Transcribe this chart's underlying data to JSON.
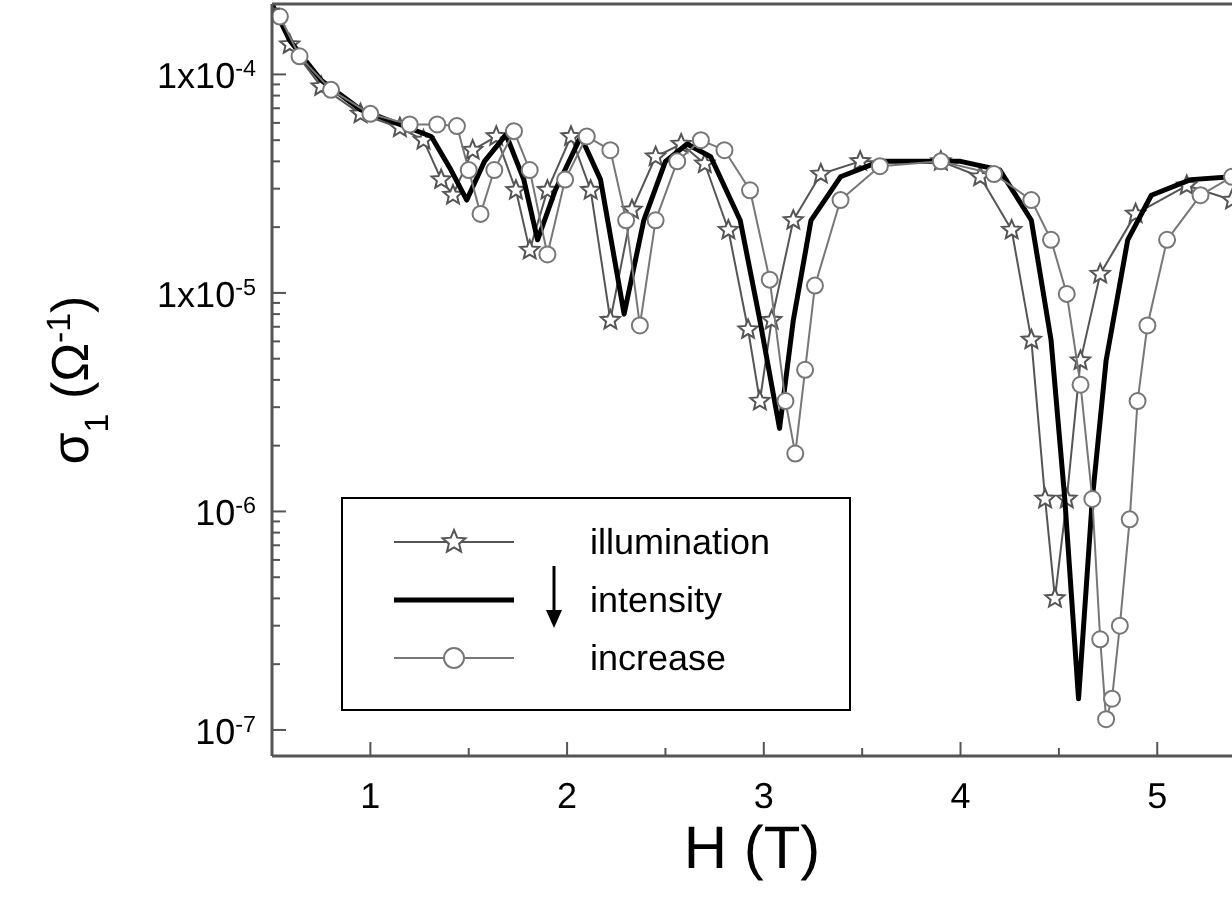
{
  "chart_data": {
    "type": "line",
    "xlabel": "H (T)",
    "ylabel": "σ$_{1}$ (Ω$^{-1}$)",
    "log": "y",
    "legend": "bottom left",
    "xlim": [
      0.5,
      5.38
    ],
    "ylim": [
      7.6e-08,
      0.00021
    ],
    "xticks": [
      1,
      {
        "value": 1.5,
        "label": null
      },
      2,
      {
        "value": 2.5,
        "label": null
      },
      3,
      {
        "value": 3.5,
        "label": null
      },
      4,
      {
        "value": 4.5,
        "label": null
      },
      5
    ],
    "yticks": [
      {
        "value": 1e-07,
        "label": "10$^{-7}$"
      },
      {
        "value": 2e-07,
        "label": null
      },
      {
        "value": 3e-07,
        "label": null
      },
      {
        "value": 4e-07,
        "label": null
      },
      {
        "value": 5e-07,
        "label": null
      },
      {
        "value": 6e-07,
        "label": null
      },
      {
        "value": 7e-07,
        "label": null
      },
      {
        "value": 8e-07,
        "label": null
      },
      {
        "value": 9e-07,
        "label": null
      },
      {
        "value": 1e-06,
        "label": "10$^{-6}$"
      },
      {
        "value": 2e-06,
        "label": null
      },
      {
        "value": 3e-06,
        "label": null
      },
      {
        "value": 4e-06,
        "label": null
      },
      {
        "value": 5e-06,
        "label": null
      },
      {
        "value": 6e-06,
        "label": null
      },
      {
        "value": 7e-06,
        "label": null
      },
      {
        "value": 8e-06,
        "label": null
      },
      {
        "value": 9e-06,
        "label": null
      },
      {
        "value": 1e-05,
        "label": "1x10$^{-5}$"
      },
      {
        "value": 2e-05,
        "label": null
      },
      {
        "value": 3e-05,
        "label": null
      },
      {
        "value": 4e-05,
        "label": null
      },
      {
        "value": 5e-05,
        "label": null
      },
      {
        "value": 6e-05,
        "label": null
      },
      {
        "value": 7e-05,
        "label": null
      },
      {
        "value": 8e-05,
        "label": null
      },
      {
        "value": 9e-05,
        "label": null
      },
      {
        "value": 0.0001,
        "label": "1x10$^{-4}$"
      },
      {
        "value": 0.0002,
        "label": null
      }
    ],
    "series": [
      {
        "name": "illumination",
        "color": "#555555",
        "marker": "star",
        "x": [
          0.59,
          0.75,
          0.95,
          1.15,
          1.27,
          1.36,
          1.42,
          1.52,
          1.64,
          1.74,
          1.81,
          1.9,
          2.02,
          2.12,
          2.22,
          2.33,
          2.45,
          2.58,
          2.7,
          2.82,
          2.92,
          2.98,
          3.04,
          3.15,
          3.29,
          3.49,
          3.9,
          4.1,
          4.26,
          4.36,
          4.43,
          4.48,
          4.54,
          4.61,
          4.71,
          4.89,
          5.15,
          5.38
        ],
        "values": [
          0.000137,
          8.8e-05,
          6.6e-05,
          5.7e-05,
          5e-05,
          3.3e-05,
          2.8e-05,
          4.5e-05,
          5.2e-05,
          2.95e-05,
          1.57e-05,
          2.95e-05,
          5.2e-05,
          2.95e-05,
          7.5e-06,
          2.4e-05,
          4.2e-05,
          4.8e-05,
          3.9e-05,
          1.94e-05,
          6.8e-06,
          3.2e-06,
          7.5e-06,
          2.15e-05,
          3.5e-05,
          4e-05,
          4e-05,
          3.4e-05,
          1.94e-05,
          6.1e-06,
          1.14e-06,
          4e-07,
          1.14e-06,
          4.9e-06,
          1.22e-05,
          2.3e-05,
          3.1e-05,
          2.66e-05
        ]
      },
      {
        "name": "intensity",
        "color": "#000000",
        "marker": "none",
        "x": [
          0.5,
          0.59,
          0.75,
          0.95,
          1.15,
          1.31,
          1.41,
          1.49,
          1.58,
          1.69,
          1.78,
          1.85,
          1.94,
          2.07,
          2.17,
          2.29,
          2.39,
          2.5,
          2.61,
          2.73,
          2.88,
          2.98,
          3.08,
          3.15,
          3.24,
          3.39,
          3.59,
          4.0,
          4.2,
          4.36,
          4.46,
          4.53,
          4.6,
          4.67,
          4.74,
          4.85,
          4.97,
          5.17,
          5.38
        ],
        "values": [
          0.00021,
          0.000143,
          9.4e-05,
          6.9e-05,
          5.9e-05,
          5.2e-05,
          3.65e-05,
          2.66e-05,
          4e-05,
          5.3e-05,
          3.3e-05,
          1.75e-05,
          2.95e-05,
          5.2e-05,
          3.3e-05,
          8e-06,
          2.15e-05,
          4e-05,
          4.8e-05,
          4.2e-05,
          2.15e-05,
          7.5e-06,
          2.4e-06,
          7.5e-06,
          2.15e-05,
          3.4e-05,
          4e-05,
          4e-05,
          3.65e-05,
          2.15e-05,
          6.1e-06,
          1.14e-06,
          1.39e-07,
          1.14e-06,
          4.9e-06,
          1.75e-05,
          2.8e-05,
          3.3e-05,
          3.4e-05
        ]
      },
      {
        "name": "increase",
        "color": "#777777",
        "marker": "circle",
        "x": [
          0.54,
          0.64,
          0.8,
          1.0,
          1.2,
          1.34,
          1.44,
          1.5,
          1.56,
          1.63,
          1.73,
          1.81,
          1.9,
          1.99,
          2.1,
          2.22,
          2.3,
          2.37,
          2.45,
          2.56,
          2.68,
          2.8,
          2.93,
          3.03,
          3.11,
          3.16,
          3.21,
          3.26,
          3.39,
          3.59,
          3.9,
          4.17,
          4.36,
          4.46,
          4.54,
          4.61,
          4.67,
          4.71,
          4.74,
          4.77,
          4.81,
          4.86,
          4.9,
          4.95,
          5.05,
          5.22,
          5.38
        ],
        "values": [
          0.000184,
          0.000121,
          8.5e-05,
          6.6e-05,
          5.9e-05,
          5.9e-05,
          5.8e-05,
          3.65e-05,
          2.3e-05,
          3.65e-05,
          5.5e-05,
          3.65e-05,
          1.5e-05,
          3.3e-05,
          5.2e-05,
          4.5e-05,
          2.15e-05,
          7.1e-06,
          2.15e-05,
          4e-05,
          5e-05,
          4.5e-05,
          2.95e-05,
          1.15e-05,
          3.2e-06,
          1.84e-06,
          4.45e-06,
          1.08e-05,
          2.66e-05,
          3.8e-05,
          4e-05,
          3.5e-05,
          2.66e-05,
          1.75e-05,
          9.9e-06,
          3.8e-06,
          1.14e-06,
          2.6e-07,
          1.12e-07,
          1.39e-07,
          3e-07,
          9.2e-07,
          3.2e-06,
          7.1e-06,
          1.75e-05,
          2.8e-05,
          3.4e-05
        ]
      }
    ]
  }
}
